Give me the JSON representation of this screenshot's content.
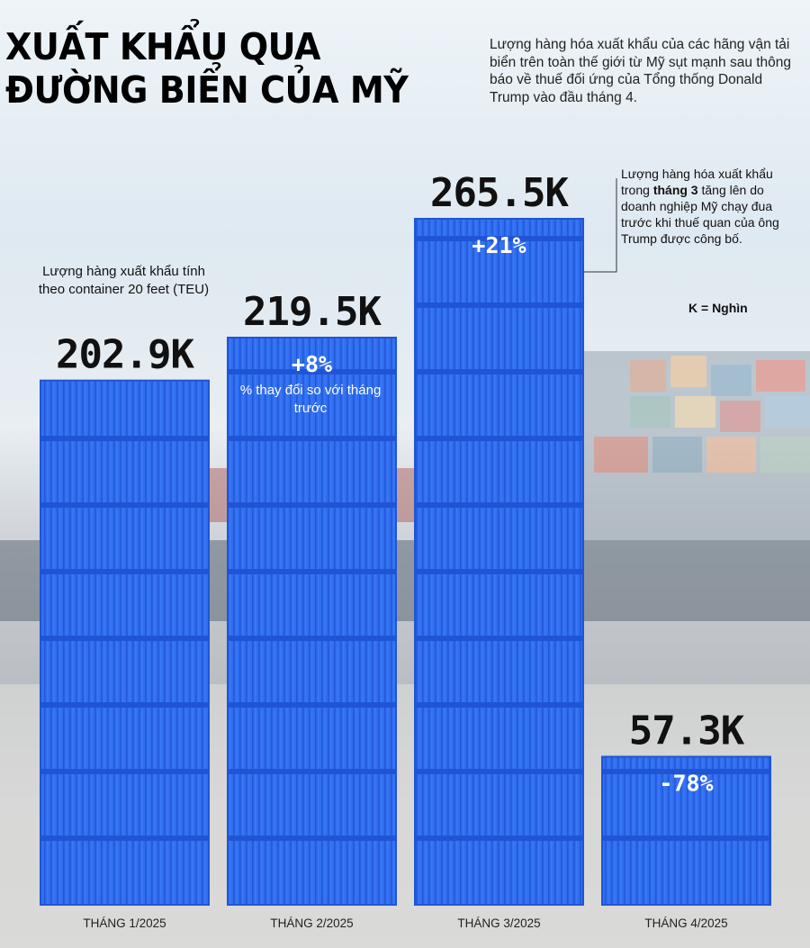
{
  "title_line1": "XUẤT KHẨU QUA",
  "title_line2": "ĐƯỜNG BIỂN CỦA MỸ",
  "intro": "Lượng hàng hóa xuất khẩu của các hãng vận tải biển trên toàn thế giới từ Mỹ sụt mạnh sau thông báo về thuế đối ứng của Tổng thống Donald Trump vào đầu tháng 4.",
  "annotation": {
    "before": "Lượng hàng hóa xuất khẩu trong ",
    "bold": "tháng 3",
    "after": " tăng lên do doanh nghiệp Mỹ chạy đua trước khi thuế quan của ông Trump được công bố."
  },
  "unit_note": "K = Nghìn",
  "bar_unit_note": "Lượng hàng xuất khẩu tính theo container 20 feet (TEU)",
  "bar_change_note": "% thay đổi so với tháng trước",
  "colors": {
    "bar": "#2f6ff0",
    "bar_dark": "#1f55d4",
    "text": "#111111"
  },
  "chart_data": {
    "type": "bar",
    "categories": [
      "THÁNG 1/2025",
      "THÁNG 2/2025",
      "THÁNG 3/2025",
      "THÁNG 4/2025"
    ],
    "values": [
      202.9,
      219.5,
      265.5,
      57.3
    ],
    "value_labels": [
      "202.9K",
      "219.5K",
      "265.5K",
      "57.3K"
    ],
    "pct_change_labels": [
      "",
      "+8%",
      "+21%",
      "-78%"
    ],
    "ylim": [
      0,
      265.5
    ]
  }
}
